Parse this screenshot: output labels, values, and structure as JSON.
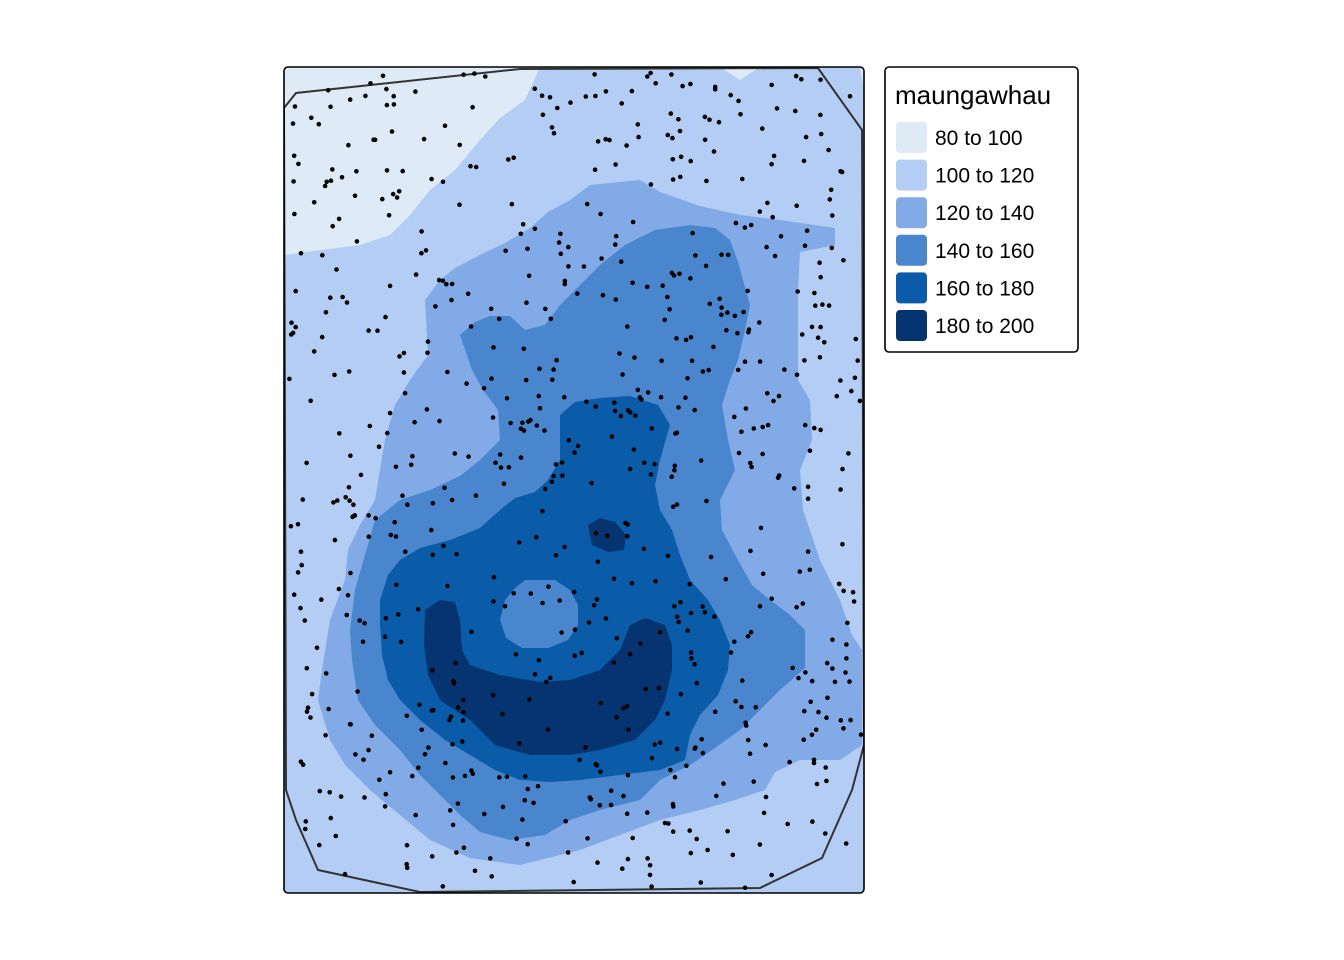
{
  "legend": {
    "title": "maungawhau",
    "entries": [
      {
        "label": "80 to 100",
        "color": "#deebf7"
      },
      {
        "label": "100 to 120",
        "color": "#b3cdf5"
      },
      {
        "label": "120 to 140",
        "color": "#82aae6"
      },
      {
        "label": "140 to 160",
        "color": "#4a86cd"
      },
      {
        "label": "160 to 180",
        "color": "#0b5ca8"
      },
      {
        "label": "180 to 200",
        "color": "#063470"
      }
    ]
  },
  "map": {
    "layer": "maungawhau",
    "points_color": "#000000",
    "hull_color": "#333333"
  }
}
